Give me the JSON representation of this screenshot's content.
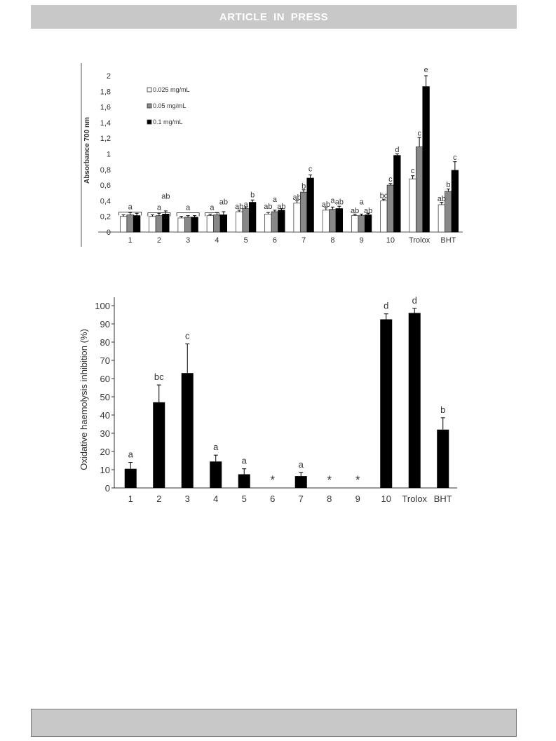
{
  "header": {
    "banner_text": "ARTICLE  IN  PRESS"
  },
  "chart_data": [
    {
      "type": "bar",
      "ylabel": "Absorbance 700 nm",
      "xlabel": "",
      "categories": [
        "1",
        "2",
        "3",
        "4",
        "5",
        "6",
        "7",
        "8",
        "9",
        "10",
        "Trolox",
        "BHT"
      ],
      "ylim": [
        0,
        2
      ],
      "yticks": [
        "0",
        "0,2",
        "0,4",
        "0,6",
        "0,8",
        "1",
        "1,2",
        "1,4",
        "1,6",
        "1,8",
        "2"
      ],
      "legend_position": "top-left",
      "grid": false,
      "series": [
        {
          "name": "0.025 mg/mL",
          "color": "#ffffff",
          "values": [
            0.2,
            0.2,
            0.18,
            0.21,
            0.26,
            0.23,
            0.37,
            0.28,
            0.21,
            0.4,
            0.68,
            0.35
          ],
          "errors": [
            0.02,
            0.02,
            0.02,
            0.02,
            0.02,
            0.02,
            0.03,
            0.03,
            0.02,
            0.02,
            0.04,
            0.03
          ]
        },
        {
          "name": "0.05 mg/mL",
          "color": "#888888",
          "values": [
            0.22,
            0.21,
            0.19,
            0.22,
            0.3,
            0.26,
            0.51,
            0.29,
            0.21,
            0.6,
            1.09,
            0.52
          ],
          "errors": [
            0.03,
            0.03,
            0.02,
            0.03,
            0.02,
            0.02,
            0.03,
            0.03,
            0.02,
            0.02,
            0.12,
            0.03
          ]
        },
        {
          "name": "0.1 mg/mL",
          "color": "#000000",
          "values": [
            0.21,
            0.23,
            0.19,
            0.22,
            0.38,
            0.28,
            0.69,
            0.3,
            0.22,
            0.98,
            1.86,
            0.79
          ],
          "errors": [
            0.03,
            0.04,
            0.02,
            0.04,
            0.03,
            0.02,
            0.04,
            0.03,
            0.02,
            0.02,
            0.14,
            0.11
          ]
        }
      ],
      "annotations": [
        {
          "category": "1",
          "label": "a",
          "level": 0.31,
          "bracket": true,
          "series_index": 1
        },
        {
          "category": "2",
          "label": "a",
          "level": 0.3,
          "bracket": true,
          "series_index": 1
        },
        {
          "category": "2",
          "label": "ab",
          "level": 0.46,
          "series_index": 2
        },
        {
          "category": "3",
          "label": "a",
          "level": 0.3,
          "bracket": true,
          "series_index": 1
        },
        {
          "category": "4",
          "label": "a",
          "level": 0.3,
          "bracket": true,
          "series_index": 0
        },
        {
          "category": "4",
          "label": "ab",
          "level": 0.39,
          "series_index": 2
        },
        {
          "category": "5",
          "label": "ab",
          "level": 0.33,
          "series_index": 0
        },
        {
          "category": "5",
          "label": "a",
          "level": 0.36,
          "series_index": 1
        },
        {
          "category": "5",
          "label": "b",
          "level": 0.48,
          "series_index": 2
        },
        {
          "category": "6",
          "label": "ab",
          "level": 0.33,
          "series_index": 0
        },
        {
          "category": "6",
          "label": "a",
          "level": 0.42,
          "series_index": 1
        },
        {
          "category": "6",
          "label": "ab",
          "level": 0.33,
          "series_index": 2
        },
        {
          "category": "7",
          "label": "ab",
          "level": 0.45,
          "series_index": 0
        },
        {
          "category": "7",
          "label": "b",
          "level": 0.59,
          "series_index": 1
        },
        {
          "category": "7",
          "label": "c",
          "level": 0.81,
          "series_index": 2
        },
        {
          "category": "8",
          "label": "ab",
          "level": 0.36,
          "series_index": 0
        },
        {
          "category": "8",
          "label": "a",
          "level": 0.41,
          "series_index": 1
        },
        {
          "category": "8",
          "label": "ab",
          "level": 0.39,
          "series_index": 2
        },
        {
          "category": "9",
          "label": "ab",
          "level": 0.28,
          "series_index": 0
        },
        {
          "category": "9",
          "label": "a",
          "level": 0.39,
          "series_index": 1
        },
        {
          "category": "9",
          "label": "ab",
          "level": 0.28,
          "series_index": 2
        },
        {
          "category": "10",
          "label": "bc",
          "level": 0.47,
          "series_index": 0
        },
        {
          "category": "10",
          "label": "c",
          "level": 0.68,
          "series_index": 1
        },
        {
          "category": "10",
          "label": "d",
          "level": 1.06,
          "series_index": 2
        },
        {
          "category": "Trolox",
          "label": "c",
          "level": 0.79,
          "series_index": 0
        },
        {
          "category": "Trolox",
          "label": "c",
          "level": 1.27,
          "series_index": 1
        },
        {
          "category": "Trolox",
          "label": "e",
          "level": 2.08,
          "series_index": 2
        },
        {
          "category": "BHT",
          "label": "ab",
          "level": 0.43,
          "series_index": 0
        },
        {
          "category": "BHT",
          "label": "b",
          "level": 0.61,
          "series_index": 1
        },
        {
          "category": "BHT",
          "label": "c",
          "level": 0.96,
          "series_index": 2
        }
      ]
    },
    {
      "type": "bar",
      "ylabel": "Oxidative haemolysis inhibition (%)",
      "xlabel": "",
      "categories": [
        "1",
        "2",
        "3",
        "4",
        "5",
        "6",
        "7",
        "8",
        "9",
        "10",
        "Trolox",
        "BHT"
      ],
      "ylim": [
        0,
        100
      ],
      "yticks": [
        "0",
        "10",
        "20",
        "30",
        "40",
        "50",
        "60",
        "70",
        "80",
        "90",
        "100"
      ],
      "grid": false,
      "series": [
        {
          "color": "#000000",
          "values": [
            10.5,
            47,
            63,
            14.5,
            7.5,
            null,
            6.5,
            null,
            null,
            92.5,
            96,
            32
          ],
          "errors": [
            3.5,
            9.5,
            16,
            3.5,
            3,
            null,
            2,
            null,
            null,
            3,
            2.5,
            6.5
          ]
        }
      ],
      "annotations": [
        {
          "category": "1",
          "label": "a"
        },
        {
          "category": "2",
          "label": "bc"
        },
        {
          "category": "3",
          "label": "c"
        },
        {
          "category": "4",
          "label": "a"
        },
        {
          "category": "5",
          "label": "a"
        },
        {
          "category": "6",
          "label": "*"
        },
        {
          "category": "7",
          "label": "a"
        },
        {
          "category": "8",
          "label": "*"
        },
        {
          "category": "9",
          "label": "*"
        },
        {
          "category": "10",
          "label": "d"
        },
        {
          "category": "Trolox",
          "label": "d"
        },
        {
          "category": "BHT",
          "label": "b"
        }
      ]
    }
  ]
}
